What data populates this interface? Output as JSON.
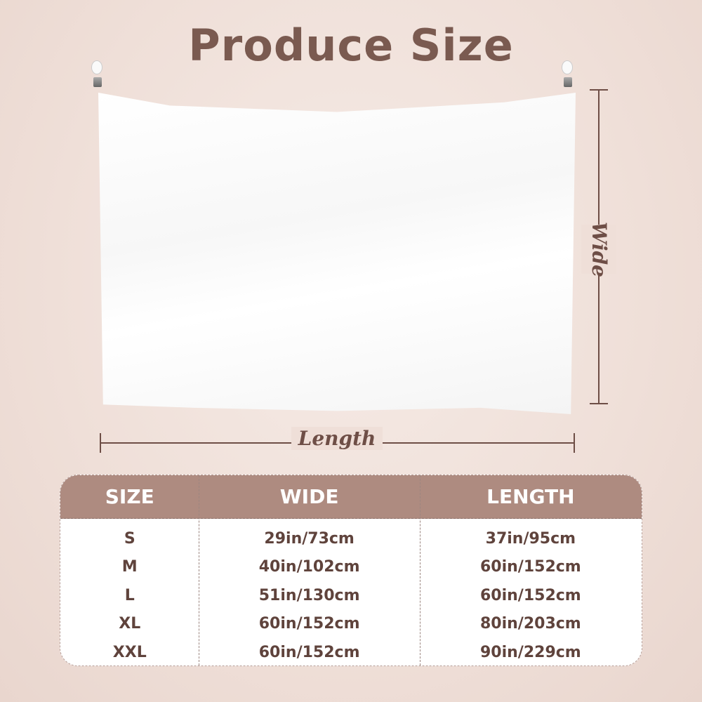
{
  "title": "Produce Size",
  "labels": {
    "wide": "Wide",
    "length": "Length"
  },
  "colors": {
    "brand": "#7a5a50",
    "header": "#ae8b80",
    "background": "#efdfd8"
  },
  "table": {
    "headers": [
      "SIZE",
      "WIDE",
      "LENGTH"
    ],
    "rows": [
      [
        "S",
        "29in/73cm",
        "37in/95cm"
      ],
      [
        "M",
        "40in/102cm",
        "60in/152cm"
      ],
      [
        "L",
        "51in/130cm",
        "60in/152cm"
      ],
      [
        "XL",
        "60in/152cm",
        "80in/203cm"
      ],
      [
        "XXL",
        "60in/152cm",
        "90in/229cm"
      ]
    ]
  }
}
